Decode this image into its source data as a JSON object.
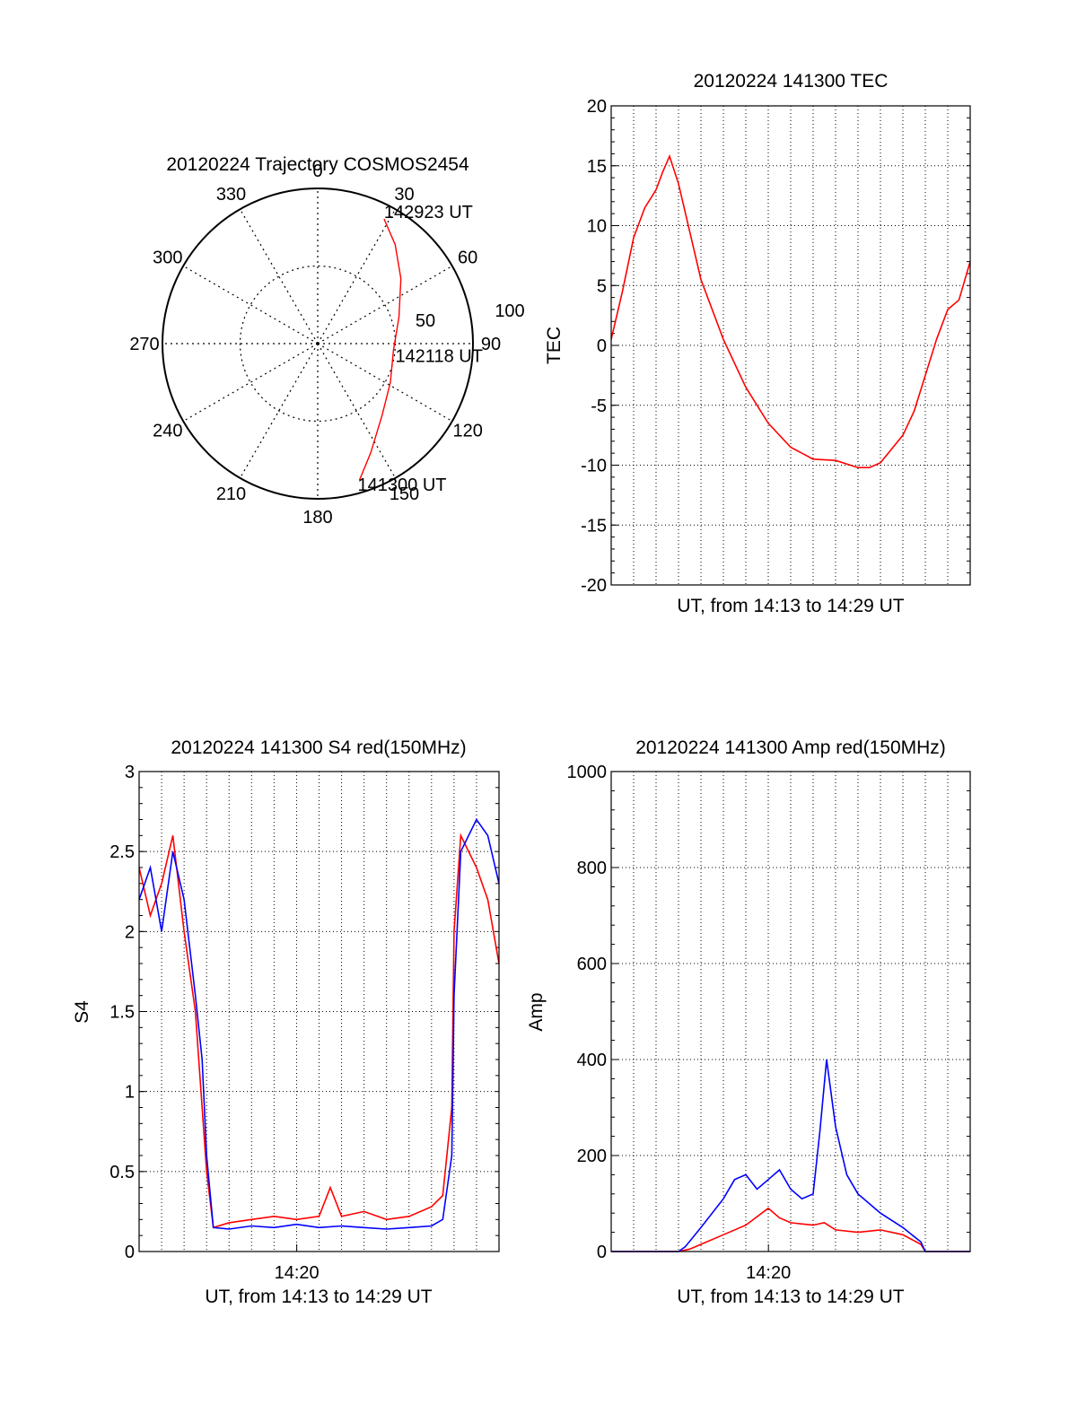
{
  "chart_data": [
    {
      "type": "polar",
      "title": "20120224 Trajectory COSMOS2454",
      "angle_labels": [
        "0",
        "30",
        "60",
        "90",
        "120",
        "150",
        "180",
        "210",
        "240",
        "270",
        "300",
        "330"
      ],
      "radius_labels": [
        "50",
        "100"
      ],
      "rlim": [
        0,
        100
      ],
      "grid": true,
      "start_label": "141300 UT",
      "mid_label": "142118 UT",
      "end_label": "142923 UT",
      "series": [
        {
          "color": "#ff0000",
          "points": [
            {
              "az": 163,
              "r": 92
            },
            {
              "az": 154,
              "r": 78
            },
            {
              "az": 138,
              "r": 62
            },
            {
              "az": 118,
              "r": 53
            },
            {
              "az": 95,
              "r": 49
            },
            {
              "az": 72,
              "r": 55
            },
            {
              "az": 52,
              "r": 68
            },
            {
              "az": 38,
              "r": 81
            },
            {
              "az": 28,
              "r": 91
            }
          ]
        }
      ]
    },
    {
      "type": "line",
      "title": "20120224 141300 TEC",
      "xlabel": "UT, from 14:13 to 14:29 UT",
      "ylabel": "TEC",
      "xlim": [
        0,
        16
      ],
      "ylim": [
        -20,
        20
      ],
      "yticks": [
        "20",
        "15",
        "10",
        "5",
        "0",
        "-5",
        "-10",
        "-15",
        "-20"
      ],
      "grid": true,
      "series": [
        {
          "color": "#ff0000",
          "x": [
            0,
            0.5,
            1.0,
            1.5,
            2.0,
            2.3,
            2.6,
            3.0,
            3.5,
            4.0,
            5.0,
            6.0,
            7.0,
            8.0,
            9.0,
            10.0,
            11.0,
            11.5,
            12.0,
            13.0,
            13.5,
            14.0,
            14.5,
            15.0,
            15.5,
            16.0
          ],
          "y": [
            0.5,
            4.5,
            9.0,
            11.5,
            13.0,
            14.5,
            15.8,
            13.5,
            9.5,
            5.5,
            0.5,
            -3.5,
            -6.5,
            -8.5,
            -9.5,
            -9.6,
            -10.2,
            -10.2,
            -9.8,
            -7.5,
            -5.5,
            -2.5,
            0.5,
            3.0,
            3.8,
            7.0
          ]
        }
      ]
    },
    {
      "type": "line",
      "title": "20120224 141300 S4 red(150MHz)",
      "xlabel": "UT, from 14:13 to 14:29 UT",
      "ylabel": "S4",
      "xtick_labels": [
        "14:20"
      ],
      "xlim": [
        0,
        16
      ],
      "ylim": [
        0,
        3
      ],
      "yticks": [
        "3",
        "2.5",
        "2",
        "1.5",
        "1",
        "0.5",
        "0"
      ],
      "grid": true,
      "series": [
        {
          "color": "#ff0000",
          "x": [
            0,
            0.5,
            1.0,
            1.5,
            2.0,
            2.5,
            2.8,
            3.0,
            3.3,
            4,
            5,
            6,
            7,
            8,
            8.5,
            9,
            10,
            11,
            12,
            13,
            13.5,
            13.9,
            14.0,
            14.3,
            15,
            15.5,
            16
          ],
          "y": [
            2.4,
            2.1,
            2.3,
            2.6,
            2.0,
            1.5,
            0.9,
            0.5,
            0.15,
            0.18,
            0.2,
            0.22,
            0.2,
            0.22,
            0.4,
            0.22,
            0.25,
            0.2,
            0.22,
            0.28,
            0.35,
            0.9,
            2.0,
            2.6,
            2.4,
            2.2,
            1.8
          ]
        },
        {
          "color": "#0000ff",
          "x": [
            0,
            0.5,
            1.0,
            1.5,
            2.0,
            2.5,
            2.8,
            3.0,
            3.3,
            4,
            5,
            6,
            7,
            8,
            9,
            10,
            11,
            12,
            13,
            13.5,
            13.9,
            14.0,
            14.3,
            15,
            15.5,
            16
          ],
          "y": [
            2.2,
            2.4,
            2.0,
            2.5,
            2.2,
            1.6,
            1.2,
            0.6,
            0.15,
            0.14,
            0.16,
            0.15,
            0.17,
            0.15,
            0.16,
            0.15,
            0.14,
            0.15,
            0.16,
            0.2,
            0.6,
            1.6,
            2.5,
            2.7,
            2.6,
            2.3
          ]
        }
      ]
    },
    {
      "type": "line",
      "title": "20120224 141300 Amp red(150MHz)",
      "xlabel": "UT, from 14:13 to 14:29 UT",
      "ylabel": "Amp",
      "xtick_labels": [
        "14:20"
      ],
      "xlim": [
        0,
        16
      ],
      "ylim": [
        0,
        1000
      ],
      "yticks": [
        "1000",
        "800",
        "600",
        "400",
        "200",
        "0"
      ],
      "grid": true,
      "series": [
        {
          "color": "#ff0000",
          "x": [
            0,
            3.0,
            3.5,
            4.0,
            5.0,
            6.0,
            7.0,
            7.5,
            8.0,
            9.0,
            9.5,
            10.0,
            11.0,
            12.0,
            13.0,
            13.8,
            14.0,
            16
          ],
          "y": [
            0,
            0,
            5,
            15,
            35,
            55,
            90,
            70,
            60,
            55,
            60,
            45,
            40,
            45,
            35,
            15,
            0,
            0
          ]
        },
        {
          "color": "#0000ff",
          "x": [
            0,
            3.0,
            3.3,
            4.0,
            5.0,
            5.5,
            6.0,
            6.5,
            7.0,
            7.5,
            8.0,
            8.5,
            9.0,
            9.3,
            9.6,
            10.0,
            10.5,
            11.0,
            12.0,
            13.0,
            13.8,
            14.0,
            16
          ],
          "y": [
            0,
            0,
            10,
            50,
            110,
            150,
            160,
            130,
            150,
            170,
            130,
            110,
            120,
            250,
            400,
            260,
            160,
            120,
            80,
            50,
            20,
            0,
            0
          ]
        }
      ]
    }
  ]
}
